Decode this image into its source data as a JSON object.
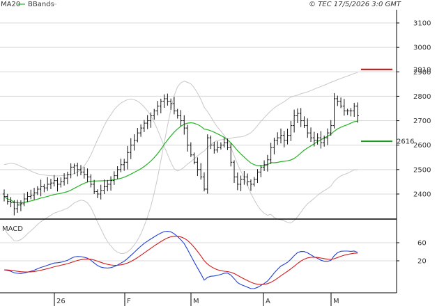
{
  "header": {
    "legend_ma": "MA20",
    "legend_bb": "BBands",
    "copyright": "© TEC 17/5/2026 3:0 GMT"
  },
  "colors": {
    "ma": "#22b322",
    "bbands": "#c8c8c8",
    "bars": "#111111",
    "resistance": "#cc0000",
    "support": "#1a9a1a",
    "macd_line": "#1f3fd6",
    "signal_line": "#d11a1a",
    "grid": "#d8d8d8",
    "frame": "#000000"
  },
  "chart_data": [
    {
      "type": "ohlc",
      "title": "",
      "x_ticks": [
        "26",
        "F",
        "M",
        "A",
        "M"
      ],
      "y_ticks": [
        "3100",
        "3000",
        "2900",
        "2800",
        "2700",
        "2600",
        "2500",
        "2400"
      ],
      "ylim": [
        2315,
        3140
      ],
      "levels": [
        {
          "name": "resistance",
          "value": 2910,
          "label": "2910"
        },
        {
          "name": "support",
          "value": 2616,
          "label": "2616"
        }
      ],
      "close": [
        2390,
        2370,
        2365,
        2340,
        2355,
        2360,
        2380,
        2390,
        2395,
        2405,
        2420,
        2430,
        2425,
        2440,
        2445,
        2455,
        2440,
        2450,
        2465,
        2480,
        2510,
        2515,
        2500,
        2490,
        2480,
        2470,
        2440,
        2410,
        2400,
        2415,
        2430,
        2440,
        2455,
        2475,
        2500,
        2520,
        2530,
        2570,
        2600,
        2620,
        2650,
        2670,
        2690,
        2700,
        2720,
        2740,
        2760,
        2780,
        2790,
        2780,
        2770,
        2740,
        2720,
        2700,
        2670,
        2600,
        2560,
        2530,
        2500,
        2470,
        2420,
        2630,
        2600,
        2580,
        2590,
        2600,
        2610,
        2590,
        2530,
        2470,
        2440,
        2460,
        2470,
        2450,
        2440,
        2460,
        2490,
        2510,
        2520,
        2540,
        2590,
        2620,
        2630,
        2640,
        2620,
        2640,
        2680,
        2720,
        2730,
        2700,
        2680,
        2650,
        2630,
        2620,
        2630,
        2610,
        2630,
        2650,
        2680,
        2790,
        2780,
        2760,
        2740,
        2740,
        2740,
        2760,
        2720
      ],
      "upper_band": [
        2520,
        2523,
        2526,
        2524,
        2520,
        2513,
        2508,
        2500,
        2494,
        2488,
        2483,
        2480,
        2478,
        2476,
        2475,
        2474,
        2474,
        2475,
        2476,
        2478,
        2480,
        2483,
        2490,
        2500,
        2515,
        2535,
        2560,
        2590,
        2622,
        2650,
        2680,
        2705,
        2725,
        2745,
        2760,
        2772,
        2780,
        2786,
        2788,
        2786,
        2780,
        2770,
        2756,
        2740,
        2720,
        2694,
        2664,
        2630,
        2595,
        2562,
        2530,
        2503,
        2494,
        2500,
        2510,
        2523,
        2532,
        2544,
        2556,
        2567,
        2576,
        2590,
        2602,
        2613,
        2620,
        2622,
        2624,
        2626,
        2628,
        2631,
        2633,
        2634,
        2637,
        2643,
        2651,
        2664,
        2680,
        2697,
        2712,
        2727,
        2740,
        2752,
        2762,
        2770,
        2778,
        2788,
        2797,
        2801,
        2805,
        2810,
        2814,
        2818,
        2823,
        2829,
        2835,
        2840,
        2845,
        2851,
        2857,
        2862,
        2868,
        2873,
        2878,
        2883,
        2888,
        2893,
        2897
      ]
    },
    {
      "type": "line",
      "title": "MACD",
      "y_ticks": [
        "60",
        "20"
      ],
      "series_names": [
        "MACD",
        "Signal"
      ]
    }
  ]
}
